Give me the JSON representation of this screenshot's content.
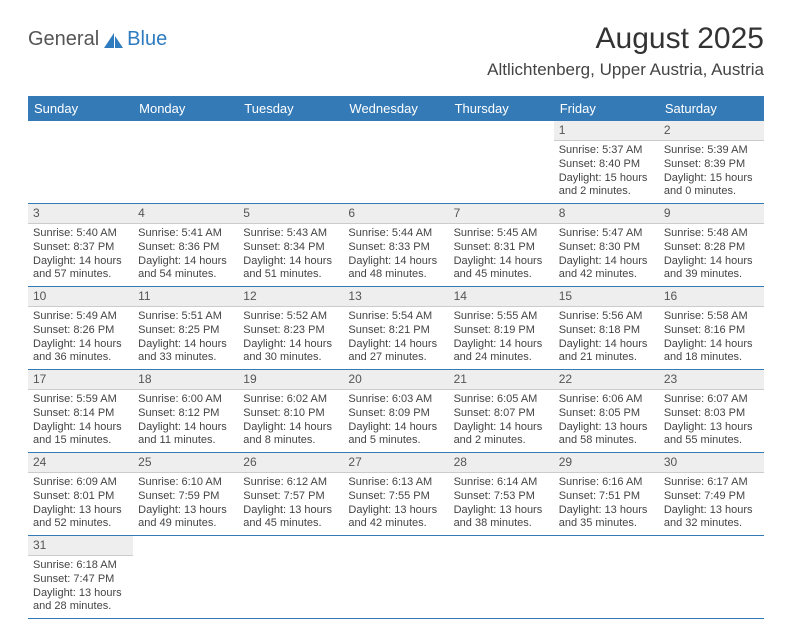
{
  "logo": {
    "part1": "General",
    "part2": "Blue"
  },
  "title": "August 2025",
  "location": "Altlichtenberg, Upper Austria, Austria",
  "colors": {
    "header_bg": "#337ab7",
    "header_text": "#ffffff",
    "daynum_bg": "#eeeeee",
    "week_border": "#337ab7",
    "logo_blue": "#2f7bbf"
  },
  "day_names": [
    "Sunday",
    "Monday",
    "Tuesday",
    "Wednesday",
    "Thursday",
    "Friday",
    "Saturday"
  ],
  "weeks": [
    [
      {
        "n": "",
        "sr": "",
        "ss": "",
        "dl": ""
      },
      {
        "n": "",
        "sr": "",
        "ss": "",
        "dl": ""
      },
      {
        "n": "",
        "sr": "",
        "ss": "",
        "dl": ""
      },
      {
        "n": "",
        "sr": "",
        "ss": "",
        "dl": ""
      },
      {
        "n": "",
        "sr": "",
        "ss": "",
        "dl": ""
      },
      {
        "n": "1",
        "sr": "Sunrise: 5:37 AM",
        "ss": "Sunset: 8:40 PM",
        "dl": "Daylight: 15 hours and 2 minutes."
      },
      {
        "n": "2",
        "sr": "Sunrise: 5:39 AM",
        "ss": "Sunset: 8:39 PM",
        "dl": "Daylight: 15 hours and 0 minutes."
      }
    ],
    [
      {
        "n": "3",
        "sr": "Sunrise: 5:40 AM",
        "ss": "Sunset: 8:37 PM",
        "dl": "Daylight: 14 hours and 57 minutes."
      },
      {
        "n": "4",
        "sr": "Sunrise: 5:41 AM",
        "ss": "Sunset: 8:36 PM",
        "dl": "Daylight: 14 hours and 54 minutes."
      },
      {
        "n": "5",
        "sr": "Sunrise: 5:43 AM",
        "ss": "Sunset: 8:34 PM",
        "dl": "Daylight: 14 hours and 51 minutes."
      },
      {
        "n": "6",
        "sr": "Sunrise: 5:44 AM",
        "ss": "Sunset: 8:33 PM",
        "dl": "Daylight: 14 hours and 48 minutes."
      },
      {
        "n": "7",
        "sr": "Sunrise: 5:45 AM",
        "ss": "Sunset: 8:31 PM",
        "dl": "Daylight: 14 hours and 45 minutes."
      },
      {
        "n": "8",
        "sr": "Sunrise: 5:47 AM",
        "ss": "Sunset: 8:30 PM",
        "dl": "Daylight: 14 hours and 42 minutes."
      },
      {
        "n": "9",
        "sr": "Sunrise: 5:48 AM",
        "ss": "Sunset: 8:28 PM",
        "dl": "Daylight: 14 hours and 39 minutes."
      }
    ],
    [
      {
        "n": "10",
        "sr": "Sunrise: 5:49 AM",
        "ss": "Sunset: 8:26 PM",
        "dl": "Daylight: 14 hours and 36 minutes."
      },
      {
        "n": "11",
        "sr": "Sunrise: 5:51 AM",
        "ss": "Sunset: 8:25 PM",
        "dl": "Daylight: 14 hours and 33 minutes."
      },
      {
        "n": "12",
        "sr": "Sunrise: 5:52 AM",
        "ss": "Sunset: 8:23 PM",
        "dl": "Daylight: 14 hours and 30 minutes."
      },
      {
        "n": "13",
        "sr": "Sunrise: 5:54 AM",
        "ss": "Sunset: 8:21 PM",
        "dl": "Daylight: 14 hours and 27 minutes."
      },
      {
        "n": "14",
        "sr": "Sunrise: 5:55 AM",
        "ss": "Sunset: 8:19 PM",
        "dl": "Daylight: 14 hours and 24 minutes."
      },
      {
        "n": "15",
        "sr": "Sunrise: 5:56 AM",
        "ss": "Sunset: 8:18 PM",
        "dl": "Daylight: 14 hours and 21 minutes."
      },
      {
        "n": "16",
        "sr": "Sunrise: 5:58 AM",
        "ss": "Sunset: 8:16 PM",
        "dl": "Daylight: 14 hours and 18 minutes."
      }
    ],
    [
      {
        "n": "17",
        "sr": "Sunrise: 5:59 AM",
        "ss": "Sunset: 8:14 PM",
        "dl": "Daylight: 14 hours and 15 minutes."
      },
      {
        "n": "18",
        "sr": "Sunrise: 6:00 AM",
        "ss": "Sunset: 8:12 PM",
        "dl": "Daylight: 14 hours and 11 minutes."
      },
      {
        "n": "19",
        "sr": "Sunrise: 6:02 AM",
        "ss": "Sunset: 8:10 PM",
        "dl": "Daylight: 14 hours and 8 minutes."
      },
      {
        "n": "20",
        "sr": "Sunrise: 6:03 AM",
        "ss": "Sunset: 8:09 PM",
        "dl": "Daylight: 14 hours and 5 minutes."
      },
      {
        "n": "21",
        "sr": "Sunrise: 6:05 AM",
        "ss": "Sunset: 8:07 PM",
        "dl": "Daylight: 14 hours and 2 minutes."
      },
      {
        "n": "22",
        "sr": "Sunrise: 6:06 AM",
        "ss": "Sunset: 8:05 PM",
        "dl": "Daylight: 13 hours and 58 minutes."
      },
      {
        "n": "23",
        "sr": "Sunrise: 6:07 AM",
        "ss": "Sunset: 8:03 PM",
        "dl": "Daylight: 13 hours and 55 minutes."
      }
    ],
    [
      {
        "n": "24",
        "sr": "Sunrise: 6:09 AM",
        "ss": "Sunset: 8:01 PM",
        "dl": "Daylight: 13 hours and 52 minutes."
      },
      {
        "n": "25",
        "sr": "Sunrise: 6:10 AM",
        "ss": "Sunset: 7:59 PM",
        "dl": "Daylight: 13 hours and 49 minutes."
      },
      {
        "n": "26",
        "sr": "Sunrise: 6:12 AM",
        "ss": "Sunset: 7:57 PM",
        "dl": "Daylight: 13 hours and 45 minutes."
      },
      {
        "n": "27",
        "sr": "Sunrise: 6:13 AM",
        "ss": "Sunset: 7:55 PM",
        "dl": "Daylight: 13 hours and 42 minutes."
      },
      {
        "n": "28",
        "sr": "Sunrise: 6:14 AM",
        "ss": "Sunset: 7:53 PM",
        "dl": "Daylight: 13 hours and 38 minutes."
      },
      {
        "n": "29",
        "sr": "Sunrise: 6:16 AM",
        "ss": "Sunset: 7:51 PM",
        "dl": "Daylight: 13 hours and 35 minutes."
      },
      {
        "n": "30",
        "sr": "Sunrise: 6:17 AM",
        "ss": "Sunset: 7:49 PM",
        "dl": "Daylight: 13 hours and 32 minutes."
      }
    ],
    [
      {
        "n": "31",
        "sr": "Sunrise: 6:18 AM",
        "ss": "Sunset: 7:47 PM",
        "dl": "Daylight: 13 hours and 28 minutes."
      },
      {
        "n": "",
        "sr": "",
        "ss": "",
        "dl": ""
      },
      {
        "n": "",
        "sr": "",
        "ss": "",
        "dl": ""
      },
      {
        "n": "",
        "sr": "",
        "ss": "",
        "dl": ""
      },
      {
        "n": "",
        "sr": "",
        "ss": "",
        "dl": ""
      },
      {
        "n": "",
        "sr": "",
        "ss": "",
        "dl": ""
      },
      {
        "n": "",
        "sr": "",
        "ss": "",
        "dl": ""
      }
    ]
  ]
}
